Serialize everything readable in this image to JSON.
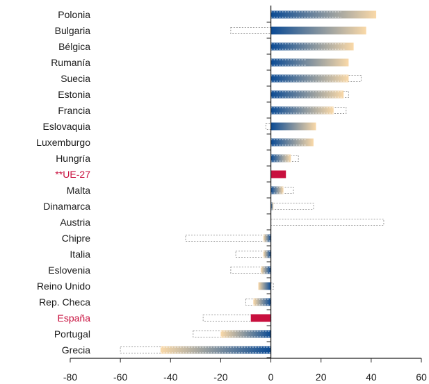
{
  "chart_data": {
    "type": "bar",
    "orientation": "horizontal",
    "categories": [
      "Polonia",
      "Bulgaria",
      "Bélgica",
      "Rumanía",
      "Suecia",
      "Estonia",
      "Francia",
      "Eslovaquia",
      "Luxemburgo",
      "Hungría",
      "**UE-27",
      "Malta",
      "Dinamarca",
      "Austria",
      "Chipre",
      "Italia",
      "Eslovenia",
      "Reino Unido",
      "Rep. Checa",
      "España",
      "Portugal",
      "Grecia"
    ],
    "highlight_categories": [
      "**UE-27",
      "España"
    ],
    "series": [
      {
        "values": [
          42,
          38,
          33,
          31,
          31,
          29,
          25,
          18,
          17,
          8,
          6,
          5,
          1,
          0,
          -3,
          -3,
          -4,
          -5,
          -7,
          -8,
          -20,
          -44
        ]
      },
      {
        "style": "dotted-outline",
        "values": [
          28,
          -16,
          30,
          14,
          36,
          31,
          30,
          -2,
          14,
          11,
          0,
          9,
          17,
          45,
          -34,
          -14,
          -16,
          1,
          -10,
          -27,
          -31,
          -60
        ]
      }
    ],
    "xlim": [
      -80,
      60
    ],
    "xticks": [
      -80,
      -60,
      -40,
      -20,
      0,
      20,
      40,
      60
    ],
    "xlabel": "",
    "ylabel": "",
    "title": "",
    "grid": false,
    "colors": {
      "gradient_start": "#0a4a94",
      "gradient_end": "#fad9a8",
      "highlight": "#c8103e",
      "reference_outline": "#9a9a9a"
    }
  }
}
